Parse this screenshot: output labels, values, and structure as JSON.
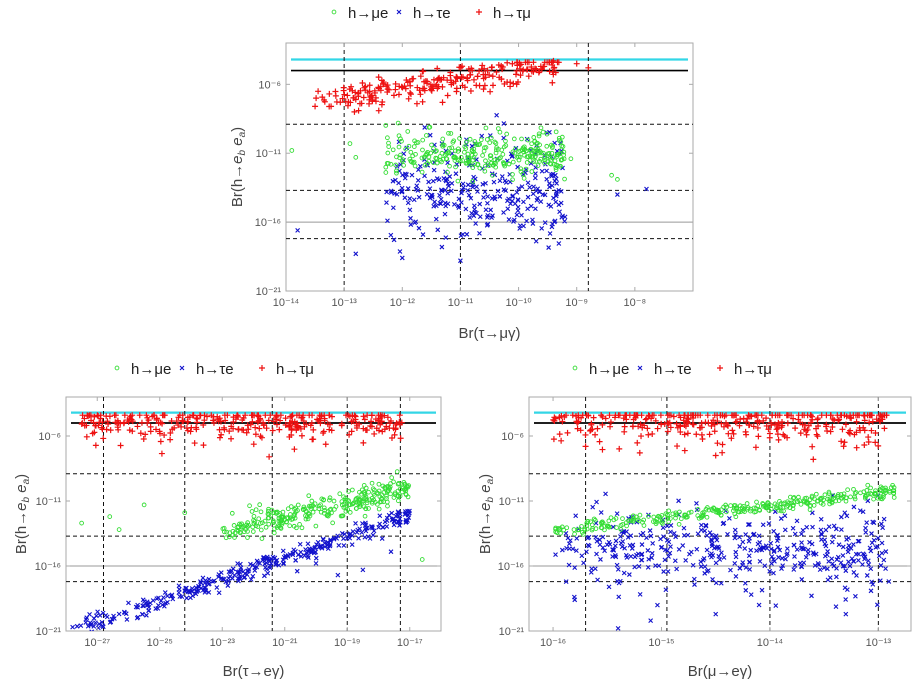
{
  "figure": {
    "colors": {
      "h_mu_e": "#33dd33",
      "h_tau_e": "#1111cc",
      "h_tau_mu": "#ee1111",
      "cyan_line": "#33d6e6",
      "black_line": "#000000",
      "gray_line": "#999999",
      "frame": "#aaaaaa",
      "tick_text": "#555555"
    },
    "legend_items": [
      {
        "marker": "circle",
        "label": "h→μe"
      },
      {
        "marker": "cross",
        "label": "h→τe"
      },
      {
        "marker": "plus",
        "label": "h→τμ"
      }
    ]
  },
  "chart_data": [
    {
      "id": "tau-mu-gamma",
      "type": "scatter",
      "xlabel": "Br(τ→μγ)",
      "ylabel": "Br(h→e_b e_a)",
      "x_scale": "log",
      "y_scale": "log",
      "xlim": [
        1e-14,
        1e-07
      ],
      "ylim": [
        1e-21,
        0.001
      ],
      "x_ticks": [
        {
          "label": "10⁻¹⁴",
          "value": -14
        },
        {
          "label": "10⁻¹³",
          "value": -13
        },
        {
          "label": "10⁻¹²",
          "value": -12
        },
        {
          "label": "10⁻¹¹",
          "value": -11
        },
        {
          "label": "10⁻¹⁰",
          "value": -10
        },
        {
          "label": "10⁻⁹",
          "value": -9
        },
        {
          "label": "10⁻⁸",
          "value": -8
        }
      ],
      "y_ticks": [
        {
          "label": "10⁻⁶",
          "value": -6
        },
        {
          "label": "10⁻¹¹",
          "value": -11
        },
        {
          "label": "10⁻¹⁶",
          "value": -16
        },
        {
          "label": "10⁻²¹",
          "value": -21
        }
      ],
      "horizontal_lines": [
        {
          "style": "cyan",
          "y": -4.2
        },
        {
          "style": "black",
          "y": -5.0
        },
        {
          "style": "dashed",
          "y": -8.9
        },
        {
          "style": "dashed",
          "y": -13.7
        },
        {
          "style": "gray",
          "y": -16.0
        },
        {
          "style": "dashed",
          "y": -17.2
        }
      ],
      "vertical_dashed": [
        -13.0,
        -11.0,
        -8.8
      ],
      "series": [
        {
          "name": "h→τμ",
          "marker": "plus",
          "color": "#ee1111",
          "x_range": [
            -13.5,
            -9.3
          ],
          "y_line": [
            -7.4,
            -4.5
          ],
          "spread": 0.55,
          "count": 240,
          "outliers": [
            [
              -13.5,
              -7.6
            ],
            [
              -12.8,
              -7.1
            ],
            [
              -9.0,
              -4.5
            ],
            [
              -8.8,
              -4.8
            ],
            [
              -12.4,
              -6.3
            ],
            [
              -9.4,
              -4.3
            ]
          ]
        },
        {
          "name": "h→μe",
          "marker": "circle",
          "color": "#33dd33",
          "x_range": [
            -12.3,
            -9.2
          ],
          "y_center": -11.0,
          "y_spread": 0.8,
          "count": 300,
          "outliers": [
            [
              -13.9,
              -10.8
            ],
            [
              -12.9,
              -10.3
            ],
            [
              -12.8,
              -11.3
            ],
            [
              -8.3,
              -12.9
            ],
            [
              -8.4,
              -12.6
            ],
            [
              -9.1,
              -11.4
            ]
          ]
        },
        {
          "name": "h→τe",
          "marker": "cross",
          "color": "#1111cc",
          "x_range": [
            -12.3,
            -9.2
          ],
          "y_center": -13.6,
          "y_spread": 1.8,
          "count": 300,
          "outliers": [
            [
              -13.8,
              -16.6
            ],
            [
              -12.8,
              -18.3
            ],
            [
              -12.0,
              -18.6
            ],
            [
              -7.8,
              -13.6
            ],
            [
              -8.3,
              -14.0
            ],
            [
              -11.0,
              -18.8
            ]
          ]
        }
      ]
    },
    {
      "id": "tau-e-gamma",
      "type": "scatter",
      "xlabel": "Br(τ→eγ)",
      "ylabel": "Br(h→e_b e_a)",
      "x_scale": "log",
      "y_scale": "log",
      "xlim": [
        1e-28,
        1e-16
      ],
      "ylim": [
        1e-21,
        0.001
      ],
      "x_ticks": [
        {
          "label": "10⁻²⁷",
          "value": -27
        },
        {
          "label": "10⁻²⁵",
          "value": -25
        },
        {
          "label": "10⁻²³",
          "value": -23
        },
        {
          "label": "10⁻²¹",
          "value": -21
        },
        {
          "label": "10⁻¹⁹",
          "value": -19
        },
        {
          "label": "10⁻¹⁷",
          "value": -17
        }
      ],
      "y_ticks": [
        {
          "label": "10⁻⁶",
          "value": -6
        },
        {
          "label": "10⁻¹¹",
          "value": -11
        },
        {
          "label": "10⁻¹⁶",
          "value": -16
        },
        {
          "label": "10⁻²¹",
          "value": -21
        }
      ],
      "horizontal_lines": [
        {
          "style": "cyan",
          "y": -4.2
        },
        {
          "style": "black",
          "y": -5.0
        },
        {
          "style": "dashed",
          "y": -8.9
        },
        {
          "style": "dashed",
          "y": -13.7
        },
        {
          "style": "gray",
          "y": -16.0
        },
        {
          "style": "dashed",
          "y": -17.2
        }
      ],
      "vertical_dashed": [
        -26.8,
        -24.2,
        -21.4,
        -19.0,
        -17.3
      ],
      "series": [
        {
          "name": "h→τμ",
          "marker": "plus",
          "color": "#ee1111",
          "x_range": [
            -27.5,
            -17.2
          ],
          "y_center": -4.9,
          "y_spread": 0.8,
          "count": 320,
          "outliers": [
            [
              -27.4,
              -5.2
            ],
            [
              -26.7,
              -5.5
            ],
            [
              -25.4,
              -5.0
            ],
            [
              -23.6,
              -6.7
            ],
            [
              -21.5,
              -7.6
            ]
          ]
        },
        {
          "name": "h→μe",
          "marker": "circle",
          "color": "#33dd33",
          "x_range": [
            -23.0,
            -17.0
          ],
          "y_line": [
            -13.3,
            -10.0
          ],
          "spread": 0.55,
          "count": 300,
          "outliers": [
            [
              -27.5,
              -12.7
            ],
            [
              -26.6,
              -12.2
            ],
            [
              -25.5,
              -11.3
            ],
            [
              -26.3,
              -13.2
            ],
            [
              -24.2,
              -11.9
            ],
            [
              -16.6,
              -15.5
            ]
          ]
        },
        {
          "name": "h→τe",
          "marker": "cross",
          "color": "#1111cc",
          "x_range": [
            -27.8,
            -17.0
          ],
          "y_line": [
            -21.0,
            -12.1
          ],
          "spread": 0.35,
          "count": 340,
          "outliers": [
            [
              -20.0,
              -15.8
            ],
            [
              -19.3,
              -16.7
            ],
            [
              -18.5,
              -16.3
            ],
            [
              -17.6,
              -14.9
            ],
            [
              -20.6,
              -16.4
            ]
          ]
        }
      ]
    },
    {
      "id": "mu-e-gamma",
      "type": "scatter",
      "xlabel": "Br(μ→eγ)",
      "ylabel": "Br(h→e_b e_a)",
      "x_scale": "log",
      "y_scale": "log",
      "xlim": [
        6e-17,
        2e-13
      ],
      "ylim": [
        1e-21,
        0.001
      ],
      "x_ticks": [
        {
          "label": "10⁻¹⁶",
          "value": -16
        },
        {
          "label": "10⁻¹⁵",
          "value": -15
        },
        {
          "label": "10⁻¹⁴",
          "value": -14
        },
        {
          "label": "10⁻¹³",
          "value": -13
        }
      ],
      "y_ticks": [
        {
          "label": "10⁻⁶",
          "value": -6
        },
        {
          "label": "10⁻¹¹",
          "value": -11
        },
        {
          "label": "10⁻¹⁶",
          "value": -16
        },
        {
          "label": "10⁻²¹",
          "value": -21
        }
      ],
      "horizontal_lines": [
        {
          "style": "cyan",
          "y": -4.2
        },
        {
          "style": "black",
          "y": -5.0
        },
        {
          "style": "dashed",
          "y": -8.9
        },
        {
          "style": "dashed",
          "y": -13.7
        },
        {
          "style": "gray",
          "y": -16.0
        },
        {
          "style": "dashed",
          "y": -17.2
        }
      ],
      "vertical_dashed": [
        -15.7,
        -14.95,
        -14.0,
        -13.0
      ],
      "series": [
        {
          "name": "h→τμ",
          "marker": "plus",
          "color": "#ee1111",
          "x_range": [
            -16.0,
            -12.9
          ],
          "y_center": -4.9,
          "y_spread": 0.9,
          "count": 330,
          "outliers": [
            [
              -15.7,
              -6.8
            ],
            [
              -15.2,
              -7.3
            ],
            [
              -14.5,
              -7.5
            ],
            [
              -13.6,
              -7.8
            ],
            [
              -13.2,
              -6.9
            ]
          ]
        },
        {
          "name": "h→μe",
          "marker": "circle",
          "color": "#33dd33",
          "x_range": [
            -16.0,
            -12.85
          ],
          "y_line": [
            -13.3,
            -10.2
          ],
          "spread": 0.25,
          "count": 320,
          "outliers": []
        },
        {
          "name": "h→τe",
          "marker": "cross",
          "color": "#1111cc",
          "x_range": [
            -16.0,
            -12.9
          ],
          "y_center": -14.7,
          "y_spread": 1.6,
          "count": 420,
          "outliers": [
            [
              -15.4,
              -20.8
            ],
            [
              -15.1,
              -20.2
            ],
            [
              -14.5,
              -19.7
            ],
            [
              -14.1,
              -19.0
            ],
            [
              -13.3,
              -19.7
            ],
            [
              -15.8,
              -18.6
            ]
          ]
        }
      ]
    }
  ]
}
